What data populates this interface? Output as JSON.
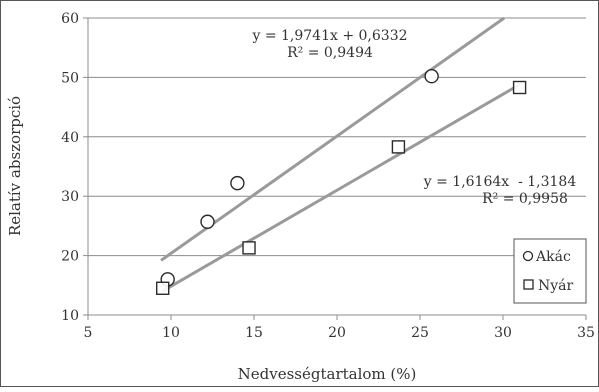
{
  "chart_data": {
    "type": "scatter",
    "title": "",
    "xlabel": "Nedvességtartalom (%)",
    "ylabel": "Relatív abszorpció",
    "xlim": [
      5,
      35
    ],
    "ylim": [
      10,
      60
    ],
    "x_ticks": [
      "5",
      "10",
      "15",
      "20",
      "25",
      "30",
      "35"
    ],
    "y_ticks": [
      "10",
      "20",
      "30",
      "40",
      "50",
      "60"
    ],
    "grid": "horizontal",
    "legend_position": "bottom-right",
    "series": [
      {
        "name": "Akác",
        "marker": "circle",
        "points": [
          [
            9.8,
            16.0
          ],
          [
            12.2,
            25.7
          ],
          [
            14.0,
            32.2
          ],
          [
            25.7,
            50.2
          ]
        ],
        "trendline": {
          "slope": 1.9741,
          "intercept": 0.6332,
          "x_range": [
            9.4,
            30.4
          ],
          "equation": "y = 1,9741x + 0,6332",
          "r2": "R² = 0,9494"
        }
      },
      {
        "name": "Nyár",
        "marker": "square",
        "points": [
          [
            9.5,
            14.5
          ],
          [
            14.7,
            21.3
          ],
          [
            23.7,
            38.3
          ],
          [
            31.0,
            48.3
          ]
        ],
        "trendline": {
          "slope": 1.6164,
          "intercept": -1.3184,
          "x_range": [
            9.5,
            31.0
          ],
          "equation": "y = 1,6164x  - 1,3184",
          "r2": "R² = 0,9958"
        }
      }
    ]
  },
  "colors": {
    "trendline": "#9a9a9a",
    "marker_stroke": "#2a2a2a",
    "grid": "#8c8c8c",
    "axis": "#8c8c8c",
    "frame": "#555555"
  }
}
